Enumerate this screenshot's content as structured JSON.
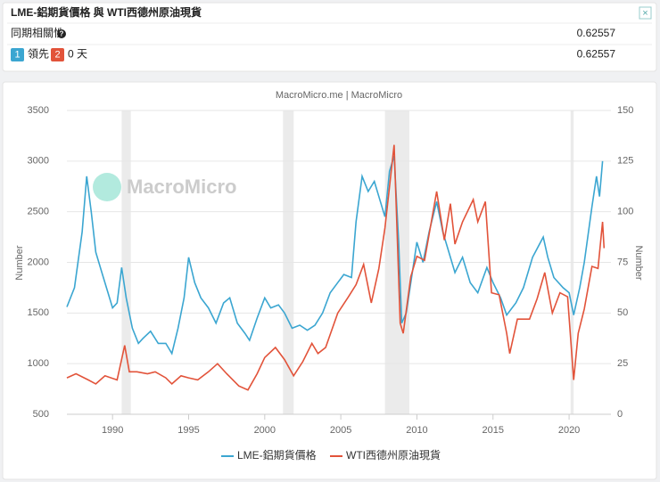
{
  "panel": {
    "title": "LME-鋁期貨價格 與 WTI西德州原油現貨",
    "close": "×",
    "rows": [
      {
        "label": "同期相關性",
        "help": "?",
        "value": 0.62557
      },
      {
        "badge1": "1",
        "text1": "領先",
        "badge2": "2",
        "text2": "0 天",
        "value": 0.62557
      }
    ]
  },
  "chart_data": {
    "type": "line",
    "title": "MacroMicro.me | MacroMicro",
    "watermark": "MacroMicro",
    "y_label": "Number",
    "y2_label": "Number",
    "xlim": [
      1987,
      2022.75
    ],
    "xticks": [
      1990,
      1995,
      2000,
      2005,
      2010,
      2015,
      2020
    ],
    "ylim": [
      500,
      3500
    ],
    "yticks": [
      500,
      1000,
      1500,
      2000,
      2500,
      3000,
      3500
    ],
    "y2lim": [
      0,
      150
    ],
    "y2ticks": [
      0,
      25,
      50,
      75,
      100,
      125,
      150
    ],
    "grid": true,
    "shaded_ranges": [
      [
        1990.6,
        1991.2
      ],
      [
        2001.2,
        2001.9
      ],
      [
        2007.9,
        2009.5
      ],
      [
        2020.1,
        2020.3
      ]
    ],
    "series": [
      {
        "name": "LME-鋁期貨價格",
        "color": "#3ba6d1",
        "x": [
          1987.0,
          1987.5,
          1988.0,
          1988.3,
          1988.6,
          1988.9,
          1989.3,
          1989.7,
          1990.0,
          1990.3,
          1990.6,
          1990.9,
          1991.3,
          1991.7,
          1992.0,
          1992.5,
          1993.0,
          1993.5,
          1993.9,
          1994.3,
          1994.7,
          1995.0,
          1995.4,
          1995.8,
          1996.3,
          1996.8,
          1997.3,
          1997.7,
          1998.2,
          1998.7,
          1999.0,
          1999.5,
          2000.0,
          2000.4,
          2000.9,
          2001.3,
          2001.8,
          2002.3,
          2002.8,
          2003.3,
          2003.8,
          2004.3,
          2004.8,
          2005.2,
          2005.7,
          2006.0,
          2006.4,
          2006.8,
          2007.2,
          2007.6,
          2007.9,
          2008.2,
          2008.5,
          2008.8,
          2009.0,
          2009.3,
          2009.7,
          2010.0,
          2010.4,
          2010.8,
          2011.3,
          2011.7,
          2012.0,
          2012.5,
          2013.0,
          2013.5,
          2014.0,
          2014.6,
          2015.0,
          2015.5,
          2015.9,
          2016.5,
          2017.0,
          2017.6,
          2018.3,
          2018.6,
          2019.0,
          2019.6,
          2020.0,
          2020.3,
          2020.7,
          2021.0,
          2021.5,
          2021.8,
          2022.0,
          2022.2
        ],
        "values": [
          1560,
          1750,
          2300,
          2850,
          2500,
          2100,
          1900,
          1700,
          1550,
          1600,
          1950,
          1650,
          1350,
          1200,
          1250,
          1320,
          1200,
          1200,
          1100,
          1350,
          1650,
          2050,
          1800,
          1650,
          1550,
          1400,
          1600,
          1650,
          1400,
          1300,
          1230,
          1450,
          1650,
          1550,
          1580,
          1500,
          1350,
          1380,
          1330,
          1380,
          1500,
          1700,
          1800,
          1880,
          1850,
          2400,
          2850,
          2700,
          2800,
          2600,
          2450,
          2900,
          3050,
          2200,
          1400,
          1500,
          1900,
          2200,
          2000,
          2300,
          2600,
          2300,
          2150,
          1900,
          2050,
          1800,
          1700,
          1950,
          1800,
          1650,
          1480,
          1600,
          1750,
          2050,
          2250,
          2050,
          1850,
          1750,
          1700,
          1480,
          1750,
          2000,
          2550,
          2850,
          2650,
          3000
        ]
      },
      {
        "name": "WTI西德州原油現貨",
        "color": "#e2533a",
        "axis": "y2",
        "x": [
          1987.0,
          1987.6,
          1988.4,
          1988.9,
          1989.5,
          1990.3,
          1990.8,
          1991.1,
          1991.6,
          1992.3,
          1992.8,
          1993.5,
          1993.9,
          1994.5,
          1995.0,
          1995.6,
          1996.3,
          1996.9,
          1997.5,
          1998.3,
          1998.9,
          1999.5,
          2000.0,
          2000.7,
          2001.3,
          2001.9,
          2002.5,
          2003.1,
          2003.5,
          2004.0,
          2004.8,
          2005.5,
          2006.0,
          2006.5,
          2007.0,
          2007.5,
          2007.9,
          2008.5,
          2008.9,
          2009.1,
          2009.6,
          2010.0,
          2010.5,
          2011.3,
          2011.8,
          2012.2,
          2012.5,
          2013.0,
          2013.7,
          2014.0,
          2014.5,
          2014.9,
          2015.4,
          2015.9,
          2016.1,
          2016.6,
          2017.4,
          2017.9,
          2018.4,
          2018.9,
          2019.4,
          2019.9,
          2020.3,
          2020.6,
          2021.0,
          2021.5,
          2021.9,
          2022.2,
          2022.3
        ],
        "values": [
          18,
          20,
          17,
          15,
          19,
          17,
          34,
          21,
          21,
          20,
          21,
          18,
          15,
          19,
          18,
          17,
          21,
          25,
          20,
          14,
          12,
          20,
          28,
          33,
          27,
          19,
          26,
          35,
          30,
          33,
          50,
          58,
          64,
          74,
          55,
          72,
          92,
          133,
          45,
          40,
          68,
          78,
          76,
          110,
          86,
          104,
          84,
          95,
          106,
          95,
          105,
          60,
          59,
          40,
          30,
          47,
          47,
          57,
          70,
          50,
          60,
          58,
          17,
          40,
          52,
          73,
          72,
          95,
          82
        ]
      }
    ]
  }
}
